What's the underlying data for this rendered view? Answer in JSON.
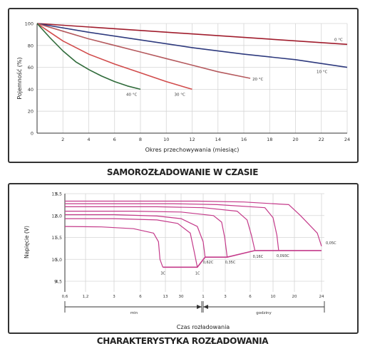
{
  "chart_data": [
    {
      "type": "line",
      "title": "",
      "caption": "SAMOROZŁADOWANIE W CZASIE",
      "xlabel": "Okres przechowywania (miesiąc)",
      "ylabel": "Pojemność (%)",
      "xlim": [
        0,
        24
      ],
      "ylim": [
        0,
        100
      ],
      "x_ticks": [
        2,
        4,
        6,
        8,
        10,
        12,
        14,
        16,
        18,
        20,
        22,
        24
      ],
      "y_ticks": [
        0,
        20,
        40,
        60,
        80,
        100
      ],
      "grid": true,
      "series": [
        {
          "name": "0 °C",
          "color": "#a01c2c",
          "x": [
            0,
            24
          ],
          "y": [
            100,
            81
          ]
        },
        {
          "name": "10 °C",
          "color": "#2e3a7e",
          "x": [
            0,
            4,
            8,
            12,
            16,
            20,
            24
          ],
          "y": [
            100,
            92,
            85,
            78,
            72,
            67,
            60
          ]
        },
        {
          "name": "20 °C",
          "color": "#b55a5e",
          "x": [
            0,
            2,
            4,
            6,
            8,
            10,
            12,
            14,
            16.5
          ],
          "y": [
            100,
            93,
            86,
            80,
            74,
            68,
            62,
            56,
            50
          ]
        },
        {
          "name": "30 °C",
          "color": "#d14b4b",
          "x": [
            0,
            1,
            2,
            4,
            6,
            8,
            10,
            12
          ],
          "y": [
            100,
            92,
            84,
            72,
            63,
            55,
            47,
            40
          ]
        },
        {
          "name": "40 °C",
          "color": "#2f6b3a",
          "x": [
            0,
            1,
            2,
            3,
            4,
            5,
            6,
            7,
            8
          ],
          "y": [
            100,
            87,
            75,
            65,
            58,
            52,
            47,
            43,
            40
          ]
        }
      ]
    },
    {
      "type": "line",
      "title": "",
      "caption": "CHARAKTERYSTYKA ROZŁADOWANIA",
      "xlabel": "Czas rozładowania",
      "ylabel": "Napięcie (V)",
      "x_scale": "log",
      "x_tick_labels": [
        "0,6",
        "1,2",
        "3",
        "6",
        "13",
        "30",
        "1",
        "3",
        "6",
        "10",
        "20",
        "24"
      ],
      "y_ticks_left": [
        "13",
        "12",
        "11",
        "10",
        "9"
      ],
      "y_ticks_right": [
        "6,5",
        "6,0",
        "5,5",
        "5,0",
        "4,5"
      ],
      "range_labels": [
        "min",
        "godziny"
      ],
      "grid": true,
      "series": [
        {
          "name": "3C",
          "color": "#c43a8a",
          "x_min": [
            0.6,
            2,
            5,
            9,
            10.5,
            11,
            12
          ],
          "y": [
            5.75,
            5.74,
            5.7,
            5.6,
            5.4,
            5.0,
            4.82
          ]
        },
        {
          "name": "1C",
          "color": "#c43a8a",
          "x_min": [
            0.6,
            3,
            10,
            25,
            40,
            45,
            50
          ],
          "y": [
            5.93,
            5.93,
            5.9,
            5.82,
            5.6,
            5.2,
            4.82
          ]
        },
        {
          "name": "0,62C",
          "color": "#c43a8a",
          "x_min": [
            0.6,
            3,
            10,
            30,
            50,
            60,
            66
          ],
          "y": [
            6.02,
            6.02,
            5.99,
            5.93,
            5.75,
            5.4,
            5.05
          ]
        },
        {
          "name": "0,35C",
          "color": "#c43a8a",
          "x_min": [
            0.6,
            5,
            30,
            100,
            150,
            175,
            190
          ],
          "y": [
            6.1,
            6.1,
            6.08,
            6.0,
            5.85,
            5.5,
            5.05
          ]
        },
        {
          "name": "0,16C",
          "color": "#c43a8a",
          "x_min": [
            0.6,
            10,
            60,
            250,
            330,
            370,
            400
          ],
          "y": [
            6.2,
            6.2,
            6.18,
            6.1,
            5.9,
            5.55,
            5.2
          ]
        },
        {
          "name": "0,093C",
          "color": "#c43a8a",
          "x_min": [
            0.6,
            20,
            120,
            500,
            600,
            680,
            720
          ],
          "y": [
            6.27,
            6.27,
            6.25,
            6.18,
            5.95,
            5.55,
            5.2
          ]
        },
        {
          "name": "0,05C",
          "color": "#c43a8a",
          "x_min": [
            0.6,
            50,
            300,
            1000,
            1250,
            1400,
            1470
          ],
          "y": [
            6.33,
            6.33,
            6.31,
            6.25,
            6.0,
            5.6,
            5.3
          ]
        }
      ],
      "cutoff_line": {
        "color": "#c43a8a",
        "points": [
          [
            12,
            4.82
          ],
          [
            50,
            4.82
          ],
          [
            66,
            5.05
          ],
          [
            190,
            5.05
          ],
          [
            400,
            5.2
          ],
          [
            1470,
            5.2
          ]
        ]
      }
    }
  ]
}
